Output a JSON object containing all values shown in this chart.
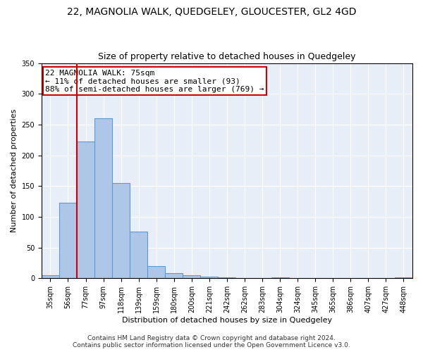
{
  "title": "22, MAGNOLIA WALK, QUEDGELEY, GLOUCESTER, GL2 4GD",
  "subtitle": "Size of property relative to detached houses in Quedgeley",
  "xlabel": "Distribution of detached houses by size in Quedgeley",
  "ylabel": "Number of detached properties",
  "bar_labels": [
    "35sqm",
    "56sqm",
    "77sqm",
    "97sqm",
    "118sqm",
    "139sqm",
    "159sqm",
    "180sqm",
    "200sqm",
    "221sqm",
    "242sqm",
    "262sqm",
    "283sqm",
    "304sqm",
    "324sqm",
    "345sqm",
    "365sqm",
    "386sqm",
    "407sqm",
    "427sqm",
    "448sqm"
  ],
  "bar_values": [
    5,
    123,
    222,
    260,
    155,
    76,
    20,
    8,
    5,
    3,
    1,
    0,
    0,
    2,
    0,
    0,
    0,
    0,
    0,
    0,
    2
  ],
  "bar_color": "#aec6e8",
  "bar_edge_color": "#5b9bd5",
  "vline_color": "#cc0000",
  "vline_x_idx": 1,
  "annotation_line1": "22 MAGNOLIA WALK: 75sqm",
  "annotation_line2": "← 11% of detached houses are smaller (93)",
  "annotation_line3": "88% of semi-detached houses are larger (769) →",
  "annotation_box_color": "#ffffff",
  "annotation_box_edge": "#cc0000",
  "ylim": [
    0,
    350
  ],
  "yticks": [
    0,
    50,
    100,
    150,
    200,
    250,
    300,
    350
  ],
  "background_color": "#e8eef7",
  "footer_line1": "Contains HM Land Registry data © Crown copyright and database right 2024.",
  "footer_line2": "Contains public sector information licensed under the Open Government Licence v3.0.",
  "title_fontsize": 10,
  "subtitle_fontsize": 9,
  "axis_label_fontsize": 8,
  "tick_fontsize": 7,
  "annotation_fontsize": 8,
  "footer_fontsize": 6.5
}
